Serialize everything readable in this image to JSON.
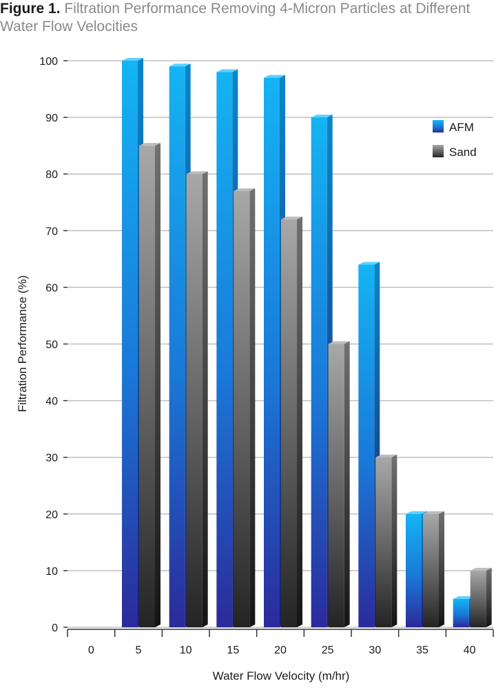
{
  "title": {
    "figure_label": "Figure 1.",
    "text": "Filtration Performance Removing 4-Micron Particles at Different Water Flow Velocities"
  },
  "colors": {
    "afm": "#1a8fe0",
    "sand": "#7a7a7a",
    "grid": "#bfbfbf"
  },
  "chart_data": {
    "type": "bar",
    "title": "Filtration Performance Removing 4-Micron Particles at Different Water Flow Velocities",
    "xlabel": "Water Flow Velocity (m/hr)",
    "ylabel": "Filtration Performance (%)",
    "categories": [
      "0",
      "5",
      "10",
      "15",
      "20",
      "25",
      "30",
      "35",
      "40"
    ],
    "ylim": [
      0,
      100
    ],
    "yticks": [
      0,
      10,
      20,
      30,
      40,
      50,
      60,
      70,
      80,
      90,
      100
    ],
    "grid": true,
    "legend_position": "top-right",
    "series": [
      {
        "name": "AFM",
        "values": [
          null,
          100,
          99,
          98,
          97,
          90,
          64,
          20,
          5
        ]
      },
      {
        "name": "Sand",
        "values": [
          null,
          85,
          80,
          77,
          72,
          50,
          30,
          20,
          10
        ]
      }
    ]
  }
}
